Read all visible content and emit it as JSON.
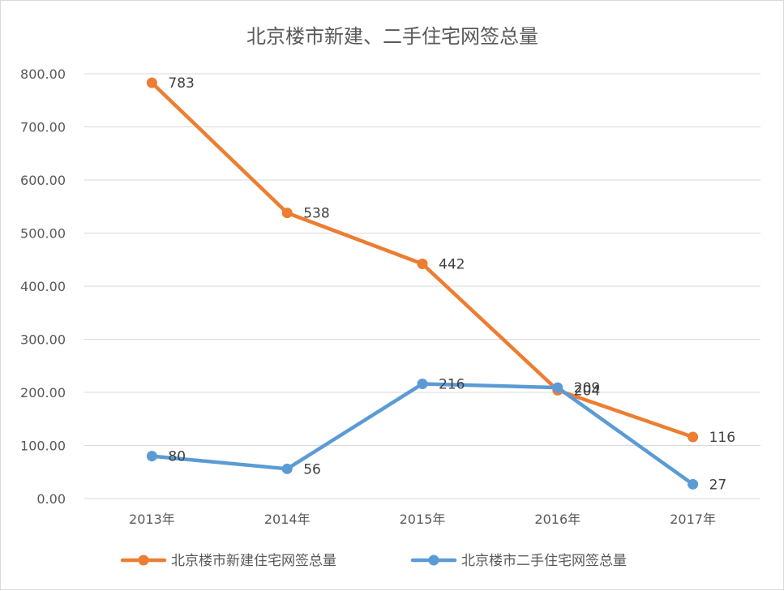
{
  "chart_data": {
    "type": "line",
    "title": "北京楼市新建、二手住宅网签总量",
    "xlabel": "",
    "ylabel": "",
    "categories": [
      "2013年",
      "2014年",
      "2015年",
      "2016年",
      "2017年"
    ],
    "ylim": [
      0,
      800
    ],
    "yticks": [
      "0.00",
      "100.00",
      "200.00",
      "300.00",
      "400.00",
      "500.00",
      "600.00",
      "700.00",
      "800.00"
    ],
    "grid": true,
    "legend_position": "bottom",
    "series": [
      {
        "name": "北京楼市新建住宅网签总量",
        "color": "#ED7D31",
        "values": [
          783,
          538,
          442,
          204,
          116
        ],
        "labels": [
          "783",
          "538",
          "442",
          "204",
          "116"
        ]
      },
      {
        "name": "北京楼市二手住宅网签总量",
        "color": "#5B9BD5",
        "values": [
          80,
          56,
          216,
          209,
          27
        ],
        "labels": [
          "80",
          "56",
          "216",
          "209",
          "27"
        ]
      }
    ]
  }
}
